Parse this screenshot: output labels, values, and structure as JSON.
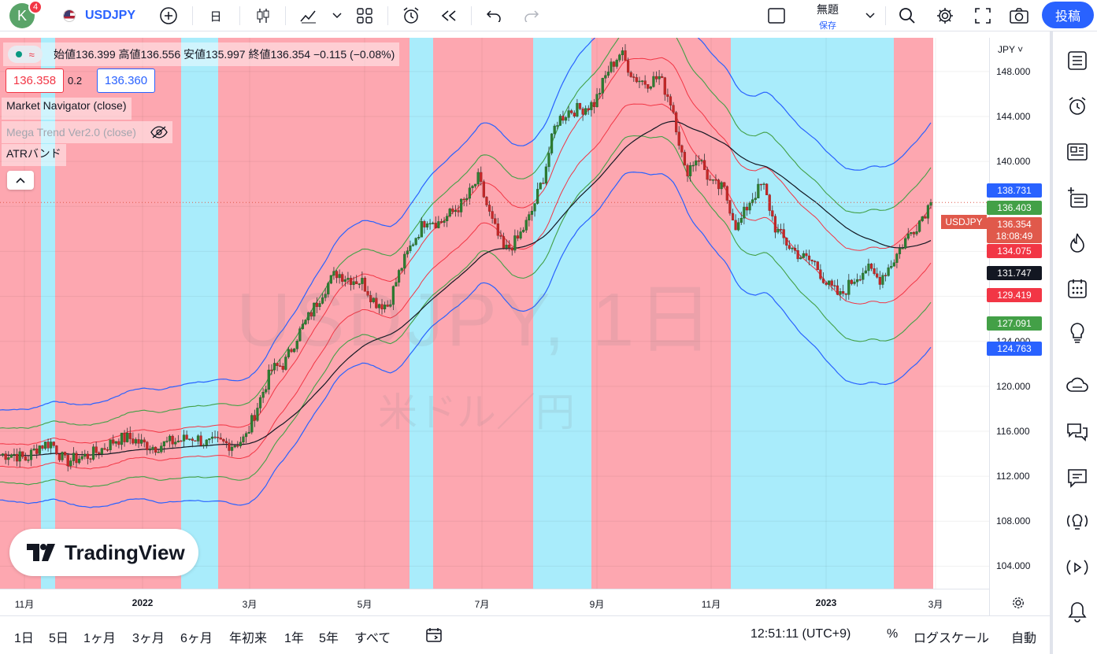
{
  "toolbar": {
    "avatar_letter": "K",
    "notifications": "4",
    "symbol": "USDJPY",
    "interval": "日",
    "layout_title": "無題",
    "layout_save": "保存",
    "publish": "投稿"
  },
  "legend": {
    "ohlc": "始値136.399 高値136.556 安値135.997 終値136.354 −0.115 (−0.08%)",
    "sell_price": "136.358",
    "spread": "0.2",
    "buy_price": "136.360",
    "indicators": [
      "Market Navigator (close)",
      "Mega Trend Ver2.0 (close)",
      "ATRバンド"
    ]
  },
  "watermark": {
    "symbol": "USDJPY, 1日",
    "description": "米ドル／円"
  },
  "brand": "TradingView",
  "price_axis": {
    "currency": "JPY",
    "ticks": [
      "148.000",
      "144.000",
      "140.000",
      "136.000",
      "132.000",
      "128.000",
      "124.000",
      "120.000",
      "116.000",
      "112.000",
      "108.000",
      "104.000"
    ],
    "labels": [
      {
        "text": "138.731",
        "color": "#2962ff"
      },
      {
        "text": "136.403",
        "color": "#43a047"
      },
      {
        "text": "136.354",
        "color": "#e0594b"
      },
      {
        "text": "18:08:49",
        "color": "#e0594b"
      },
      {
        "text": "134.075",
        "color": "#f23645"
      },
      {
        "text": "131.747",
        "color": "#131722"
      },
      {
        "text": "129.419",
        "color": "#f23645"
      },
      {
        "text": "127.091",
        "color": "#43a047"
      },
      {
        "text": "124.763",
        "color": "#2962ff"
      }
    ],
    "symbol_tag": "USDJPY"
  },
  "time_axis": {
    "ticks": [
      "11月",
      "2022",
      "3月",
      "5月",
      "7月",
      "9月",
      "11月",
      "2023",
      "3月"
    ]
  },
  "bottom": {
    "ranges": [
      "1日",
      "5日",
      "1ヶ月",
      "3ヶ月",
      "6ヶ月",
      "年初来",
      "1年",
      "5年",
      "すべて"
    ],
    "clock": "12:51:11 (UTC+9)",
    "percent": "%",
    "log": "ログスケール",
    "auto": "自動"
  },
  "chart_data": {
    "type": "line",
    "symbol": "USDJPY",
    "interval": "1日",
    "ylim": [
      102,
      151
    ],
    "close_approx": [
      113.9,
      114.0,
      113.5,
      114.7,
      115.0,
      113.3,
      113.6,
      113.9,
      114.5,
      115.3,
      115.4,
      114.9,
      114.6,
      115.0,
      115.2,
      115.5,
      114.9,
      115.0,
      114.8,
      115.4,
      118.5,
      121.5,
      122.0,
      124.5,
      126.4,
      128.5,
      130.1,
      129.6,
      129.3,
      127.5,
      127.2,
      130.5,
      133.0,
      135.0,
      134.5,
      135.5,
      136.5,
      138.5,
      134.8,
      132.0,
      133.0,
      135.1,
      138.5,
      143.5,
      144.5,
      144.7,
      145.2,
      148.0,
      149.7,
      147.5,
      147.0,
      147.5,
      145.0,
      139.0,
      140.5,
      138.0,
      137.5,
      134.0,
      136.5,
      138.0,
      134.0,
      132.5,
      131.5,
      131.0,
      129.0,
      128.0,
      129.5,
      130.5,
      129.5,
      131.0,
      133.0,
      134.5,
      136.354
    ],
    "series": [
      {
        "name": "ATRバンド 上 (blue)",
        "last": 138.731
      },
      {
        "name": "ATRバンド 中上 (green)",
        "last": 136.403
      },
      {
        "name": "ATRバンド 内上 (red)",
        "last": 134.075
      },
      {
        "name": "Mega Trend (black)",
        "last": 131.747
      },
      {
        "name": "ATRバンド 内下 (red)",
        "last": 129.419
      },
      {
        "name": "ATRバンド 中下 (green)",
        "last": 127.091
      },
      {
        "name": "ATRバンド 下 (blue)",
        "last": 124.763
      }
    ]
  }
}
